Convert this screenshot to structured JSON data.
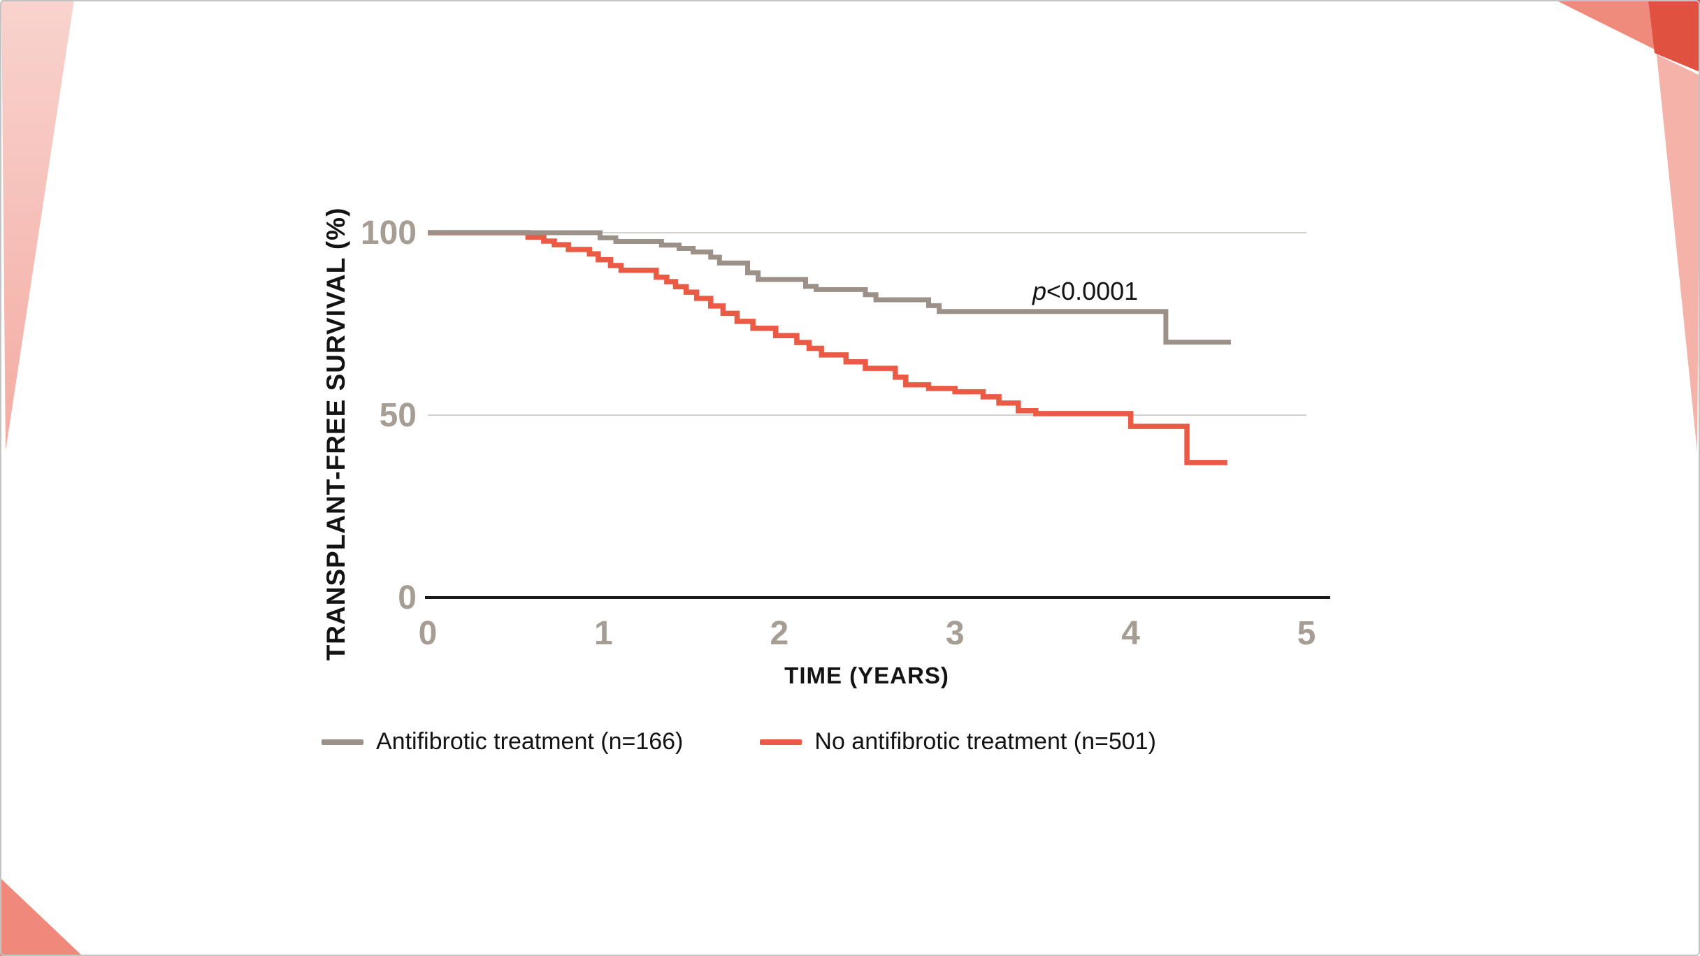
{
  "page": {
    "background": "#ffffff",
    "border_color": "#c3c3c3"
  },
  "decorations": {
    "left_wedge_top_color": "#f9d3ce",
    "left_wedge_bottom_color": "#f3aca3",
    "bottom_left_triangle_color": "#f0897b",
    "top_right_coral_color": "#ee8b7d",
    "top_right_dark_red_color": "#e05140",
    "right_strip_color": "#f5b2a9"
  },
  "chart_data": {
    "type": "line",
    "subtype": "kaplan-meier-step",
    "title": "",
    "ylabel": "TRANSPLANT-FREE SURVIVAL (%)",
    "xlabel": "TIME (YEARS)",
    "xlim": [
      0,
      5
    ],
    "ylim": [
      0,
      100
    ],
    "xticks": [
      0,
      1,
      2,
      3,
      4,
      5
    ],
    "yticks": [
      0,
      50,
      100
    ],
    "grid": "horizontal at 50 and 100",
    "legend_position": "bottom",
    "annotation": {
      "italic": "p",
      "rest": "<0.0001"
    },
    "axis_color": "#1a1a1a",
    "gridline_color": "#d4d0cd",
    "tick_label_color": "#a69d94",
    "series": [
      {
        "name": "Antifibrotic treatment (n=166)",
        "color": "#9b9189",
        "end_time": 4.57,
        "steps": [
          [
            0,
            100
          ],
          [
            0.98,
            98.6
          ],
          [
            1.07,
            97.6
          ],
          [
            1.33,
            96.6
          ],
          [
            1.43,
            95.7
          ],
          [
            1.51,
            94.7
          ],
          [
            1.61,
            93.3
          ],
          [
            1.66,
            91.7
          ],
          [
            1.82,
            89.0
          ],
          [
            1.88,
            87.2
          ],
          [
            2.15,
            85.3
          ],
          [
            2.21,
            84.4
          ],
          [
            2.49,
            83.0
          ],
          [
            2.55,
            81.6
          ],
          [
            2.85,
            80.0
          ],
          [
            2.91,
            78.4
          ],
          [
            4.2,
            70.0
          ]
        ]
      },
      {
        "name": "No antifibrotic treatment (n=501)",
        "color": "#ea5a45",
        "end_time": 4.55,
        "steps": [
          [
            0,
            100
          ],
          [
            0.57,
            98.8
          ],
          [
            0.66,
            97.7
          ],
          [
            0.72,
            96.7
          ],
          [
            0.8,
            95.4
          ],
          [
            0.92,
            94.2
          ],
          [
            0.97,
            92.6
          ],
          [
            1.04,
            91.0
          ],
          [
            1.1,
            89.7
          ],
          [
            1.3,
            87.8
          ],
          [
            1.36,
            86.6
          ],
          [
            1.41,
            85.2
          ],
          [
            1.47,
            83.7
          ],
          [
            1.53,
            82.0
          ],
          [
            1.61,
            79.9
          ],
          [
            1.68,
            77.9
          ],
          [
            1.76,
            75.7
          ],
          [
            1.85,
            73.8
          ],
          [
            1.98,
            71.8
          ],
          [
            2.1,
            69.9
          ],
          [
            2.17,
            68.3
          ],
          [
            2.24,
            66.5
          ],
          [
            2.38,
            64.6
          ],
          [
            2.49,
            62.8
          ],
          [
            2.66,
            60.4
          ],
          [
            2.72,
            58.3
          ],
          [
            2.85,
            57.3
          ],
          [
            3.0,
            56.4
          ],
          [
            3.16,
            55.0
          ],
          [
            3.25,
            53.3
          ],
          [
            3.36,
            51.2
          ],
          [
            3.46,
            50.4
          ],
          [
            4.0,
            46.9
          ],
          [
            4.32,
            37.0
          ]
        ]
      }
    ]
  }
}
